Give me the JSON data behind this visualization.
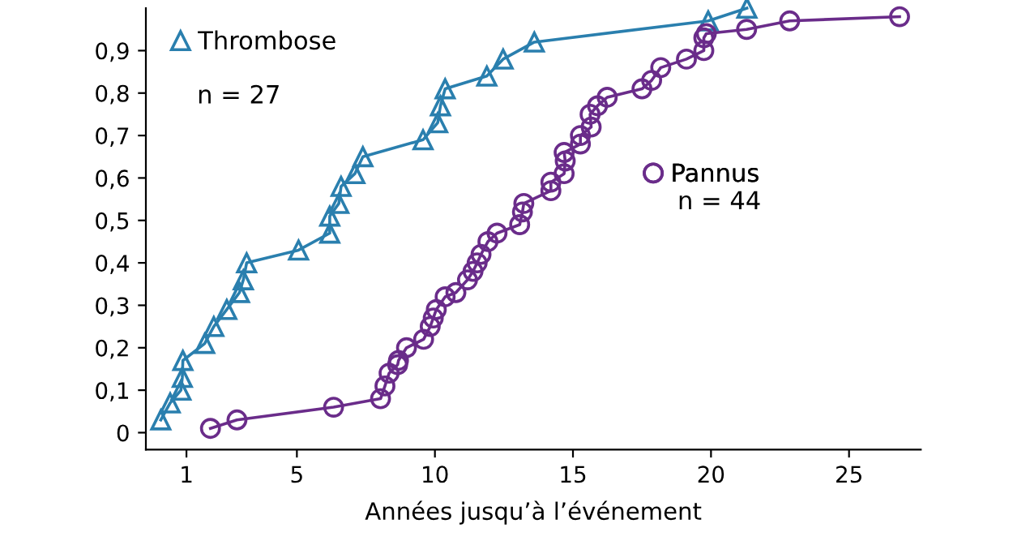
{
  "chart_data": {
    "type": "line",
    "xlabel": "Années jusqu’à l’événement",
    "xlim": [
      -0.47,
      27.6
    ],
    "xticks": [
      1,
      5,
      10,
      15,
      20,
      25
    ],
    "ylim": [
      -0.04,
      1.0
    ],
    "yticks": [
      {
        "value": 0,
        "label": "0"
      },
      {
        "value": 0.1,
        "label": "0,1"
      },
      {
        "value": 0.2,
        "label": "0,2"
      },
      {
        "value": 0.3,
        "label": "0,3"
      },
      {
        "value": 0.4,
        "label": "0,4"
      },
      {
        "value": 0.5,
        "label": "0,5"
      },
      {
        "value": 0.6,
        "label": "0,6"
      },
      {
        "value": 0.7,
        "label": "0,7"
      },
      {
        "value": 0.8,
        "label": "0,8"
      },
      {
        "value": 0.9,
        "label": "0,9"
      }
    ],
    "grid": false,
    "legend": "top left",
    "line_style": "solid",
    "annotations": [
      "n = 27",
      "n = 44"
    ],
    "series": [
      {
        "name": "Thrombose",
        "color": "#2a7fae",
        "marker": "triangle",
        "x": [
          0.07,
          0.41,
          0.8,
          0.85,
          0.87,
          1.66,
          1.99,
          2.46,
          2.92,
          3.06,
          3.18,
          5.06,
          6.19,
          6.19,
          6.52,
          6.6,
          7.1,
          7.39,
          9.57,
          10.1,
          10.2,
          10.37,
          11.88,
          12.47,
          13.6,
          19.9,
          21.3
        ],
        "values": [
          0.03,
          0.07,
          0.1,
          0.13,
          0.17,
          0.21,
          0.25,
          0.29,
          0.33,
          0.36,
          0.4,
          0.43,
          0.47,
          0.51,
          0.54,
          0.58,
          0.61,
          0.65,
          0.69,
          0.73,
          0.77,
          0.81,
          0.84,
          0.88,
          0.92,
          0.97,
          1.0
        ]
      },
      {
        "name": "Pannus",
        "color": "#6a2c8a",
        "marker": "circle",
        "x": [
          1.87,
          2.83,
          6.33,
          8.03,
          8.19,
          8.34,
          8.65,
          8.68,
          8.97,
          9.59,
          9.83,
          9.94,
          10.05,
          10.37,
          10.76,
          11.18,
          11.38,
          11.53,
          11.67,
          11.92,
          12.25,
          13.07,
          13.17,
          13.22,
          14.2,
          14.2,
          14.68,
          14.72,
          14.68,
          15.27,
          15.27,
          15.66,
          15.62,
          15.89,
          16.24,
          17.5,
          17.85,
          18.18,
          19.11,
          19.74,
          19.74,
          19.83,
          21.29,
          22.85,
          26.83
        ],
        "values": [
          0.01,
          0.03,
          0.06,
          0.08,
          0.11,
          0.14,
          0.16,
          0.17,
          0.2,
          0.22,
          0.25,
          0.27,
          0.29,
          0.32,
          0.33,
          0.36,
          0.38,
          0.4,
          0.42,
          0.45,
          0.47,
          0.49,
          0.52,
          0.54,
          0.57,
          0.59,
          0.61,
          0.64,
          0.66,
          0.68,
          0.7,
          0.72,
          0.75,
          0.77,
          0.79,
          0.81,
          0.83,
          0.86,
          0.88,
          0.9,
          0.93,
          0.94,
          0.95,
          0.97,
          0.98
        ]
      }
    ]
  }
}
